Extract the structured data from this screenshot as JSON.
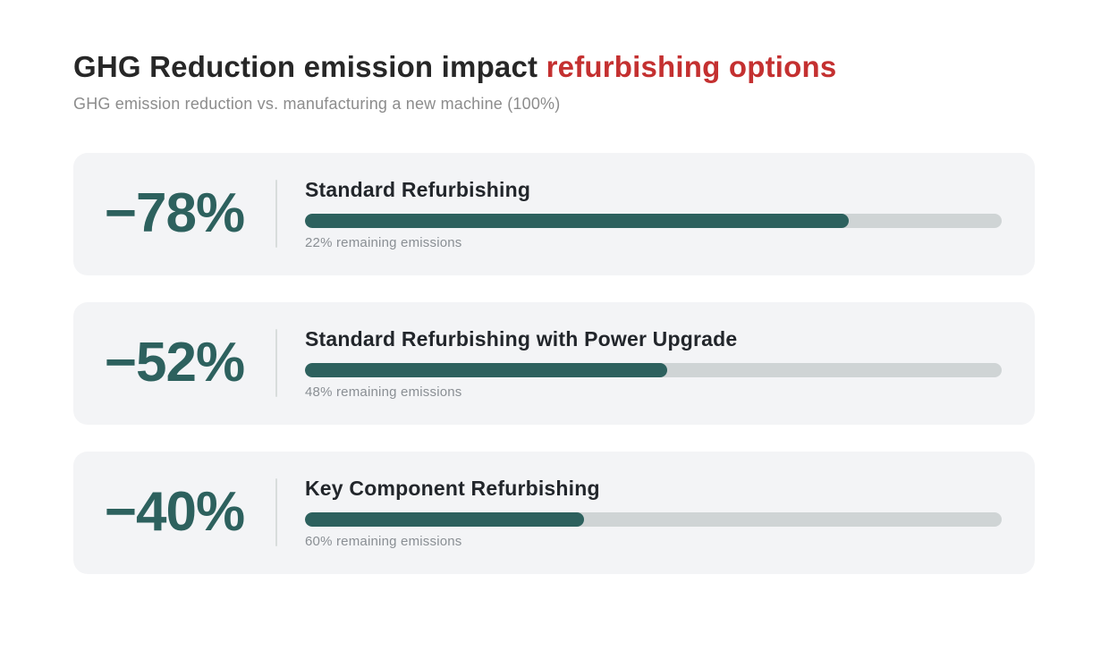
{
  "header": {
    "title_main": "GHG Reduction emission impact ",
    "title_accent": "refurbishing options",
    "subtitle": "GHG emission reduction vs. manufacturing a new machine (100%)"
  },
  "colors": {
    "accent_red": "#c43030",
    "teal": "#2d615e",
    "bar_track": "#cfd4d5",
    "card_background": "#f3f4f6"
  },
  "cards": [
    {
      "reduction_label": "−78%",
      "reduction_pct": 78,
      "title": "Standard Refurbishing",
      "caption": "22% remaining emissions"
    },
    {
      "reduction_label": "−52%",
      "reduction_pct": 52,
      "title": "Standard Refurbishing with Power Upgrade",
      "caption": "48% remaining emissions"
    },
    {
      "reduction_label": "−40%",
      "reduction_pct": 40,
      "title": "Key Component Refurbishing",
      "caption": "60% remaining emissions"
    }
  ],
  "chart_data": {
    "type": "bar",
    "orientation": "horizontal",
    "title": "GHG Reduction emission impact refurbishing options",
    "subtitle": "GHG emission reduction vs. manufacturing a new machine (100%)",
    "categories": [
      "Standard Refurbishing",
      "Standard Refurbishing with Power Upgrade",
      "Key Component Refurbishing"
    ],
    "values": [
      78,
      52,
      40
    ],
    "remaining_emissions_pct": [
      22,
      48,
      60
    ],
    "value_labels": [
      "−78%",
      "−52%",
      "−40%"
    ],
    "bar_annotations": [
      "22% remaining emissions",
      "48% remaining emissions",
      "60% remaining emissions"
    ],
    "xlabel": "",
    "ylabel": "",
    "xlim": [
      0,
      100
    ],
    "grid": "off",
    "legend": "none"
  }
}
